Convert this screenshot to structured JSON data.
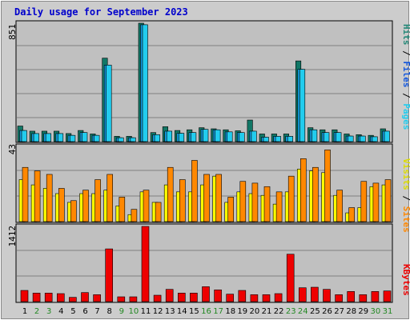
{
  "title": "Daily usage for September 2023",
  "colors": {
    "background": "#cccccc",
    "panel": "#c0c0c0",
    "grid": "#808080",
    "title": "#0000cc",
    "day_weekday": "#000000",
    "day_weekend": "#228822",
    "pages": "#117766",
    "files": "#1199dd",
    "hits": "#22ccee",
    "visits": "#ff8800",
    "sites": "#ffff00",
    "kbytes": "#ee0000"
  },
  "axis_labels": {
    "top": {
      "pages": "Pages",
      "files": "Files",
      "hits": "Hits",
      "sep": " / "
    },
    "middle": {
      "sites": "Sites",
      "visits": "Visits",
      "sep": " / "
    },
    "bottom": {
      "kbytes": "KBytes"
    }
  },
  "chart_data": [
    {
      "type": "bar",
      "title": "Daily usage for September 2023",
      "ymax_label": "851",
      "ylim": [
        0,
        851
      ],
      "categories": [
        "1",
        "2",
        "3",
        "4",
        "5",
        "6",
        "7",
        "8",
        "9",
        "10",
        "11",
        "12",
        "13",
        "14",
        "15",
        "16",
        "17",
        "18",
        "19",
        "20",
        "21",
        "22",
        "23",
        "24",
        "25",
        "26",
        "27",
        "28",
        "29",
        "30",
        "31"
      ],
      "weekend_days": [
        "2",
        "3",
        "9",
        "10",
        "16",
        "17",
        "23",
        "24",
        "30",
        "31"
      ],
      "series": [
        {
          "name": "Pages",
          "values": [
            112,
            75,
            75,
            75,
            58,
            80,
            55,
            600,
            38,
            38,
            851,
            65,
            107,
            80,
            85,
            100,
            92,
            85,
            78,
            155,
            55,
            55,
            55,
            580,
            100,
            85,
            85,
            55,
            50,
            45,
            92
          ]
        },
        {
          "name": "Files",
          "values": [
            80,
            58,
            58,
            58,
            45,
            65,
            45,
            550,
            28,
            28,
            840,
            50,
            75,
            60,
            65,
            88,
            85,
            70,
            65,
            75,
            32,
            38,
            38,
            520,
            85,
            65,
            65,
            40,
            40,
            35,
            75
          ]
        },
        {
          "name": "Hits",
          "values": [
            80,
            58,
            58,
            58,
            45,
            65,
            45,
            550,
            28,
            28,
            840,
            50,
            75,
            60,
            65,
            88,
            85,
            70,
            65,
            75,
            32,
            38,
            38,
            520,
            85,
            65,
            65,
            40,
            40,
            35,
            75
          ]
        }
      ]
    },
    {
      "type": "bar",
      "ymax_label": "43",
      "ylim": [
        0,
        43
      ],
      "categories": [
        "1",
        "2",
        "3",
        "4",
        "5",
        "6",
        "7",
        "8",
        "9",
        "10",
        "11",
        "12",
        "13",
        "14",
        "15",
        "16",
        "17",
        "18",
        "19",
        "20",
        "21",
        "22",
        "23",
        "24",
        "25",
        "26",
        "27",
        "28",
        "29",
        "30",
        "31"
      ],
      "series": [
        {
          "name": "Sites",
          "values": [
            24,
            21,
            19,
            16,
            11,
            16,
            16,
            18,
            9,
            4,
            17,
            11,
            21,
            17,
            17,
            21,
            26,
            11,
            17,
            16,
            15,
            10,
            17,
            30,
            29,
            28,
            15,
            5,
            8,
            20,
            21
          ]
        },
        {
          "name": "Visits",
          "values": [
            31,
            29,
            27,
            19,
            12,
            18,
            24,
            27,
            14,
            7,
            18,
            11,
            31,
            24,
            35,
            27,
            27,
            14,
            23,
            22,
            20,
            17,
            26,
            36,
            31,
            41,
            18,
            8,
            23,
            22,
            24
          ]
        }
      ]
    },
    {
      "type": "bar",
      "ymax_label": "1412",
      "ylim": [
        0,
        1412
      ],
      "categories": [
        "1",
        "2",
        "3",
        "4",
        "5",
        "6",
        "7",
        "8",
        "9",
        "10",
        "11",
        "12",
        "13",
        "14",
        "15",
        "16",
        "17",
        "18",
        "19",
        "20",
        "21",
        "22",
        "23",
        "24",
        "25",
        "26",
        "27",
        "28",
        "29",
        "30",
        "31"
      ],
      "series": [
        {
          "name": "KBytes",
          "values": [
            210,
            160,
            160,
            150,
            80,
            170,
            130,
            990,
            90,
            90,
            1412,
            120,
            230,
            160,
            160,
            280,
            220,
            140,
            210,
            130,
            130,
            150,
            890,
            260,
            270,
            230,
            130,
            190,
            130,
            190,
            200
          ]
        }
      ]
    }
  ]
}
